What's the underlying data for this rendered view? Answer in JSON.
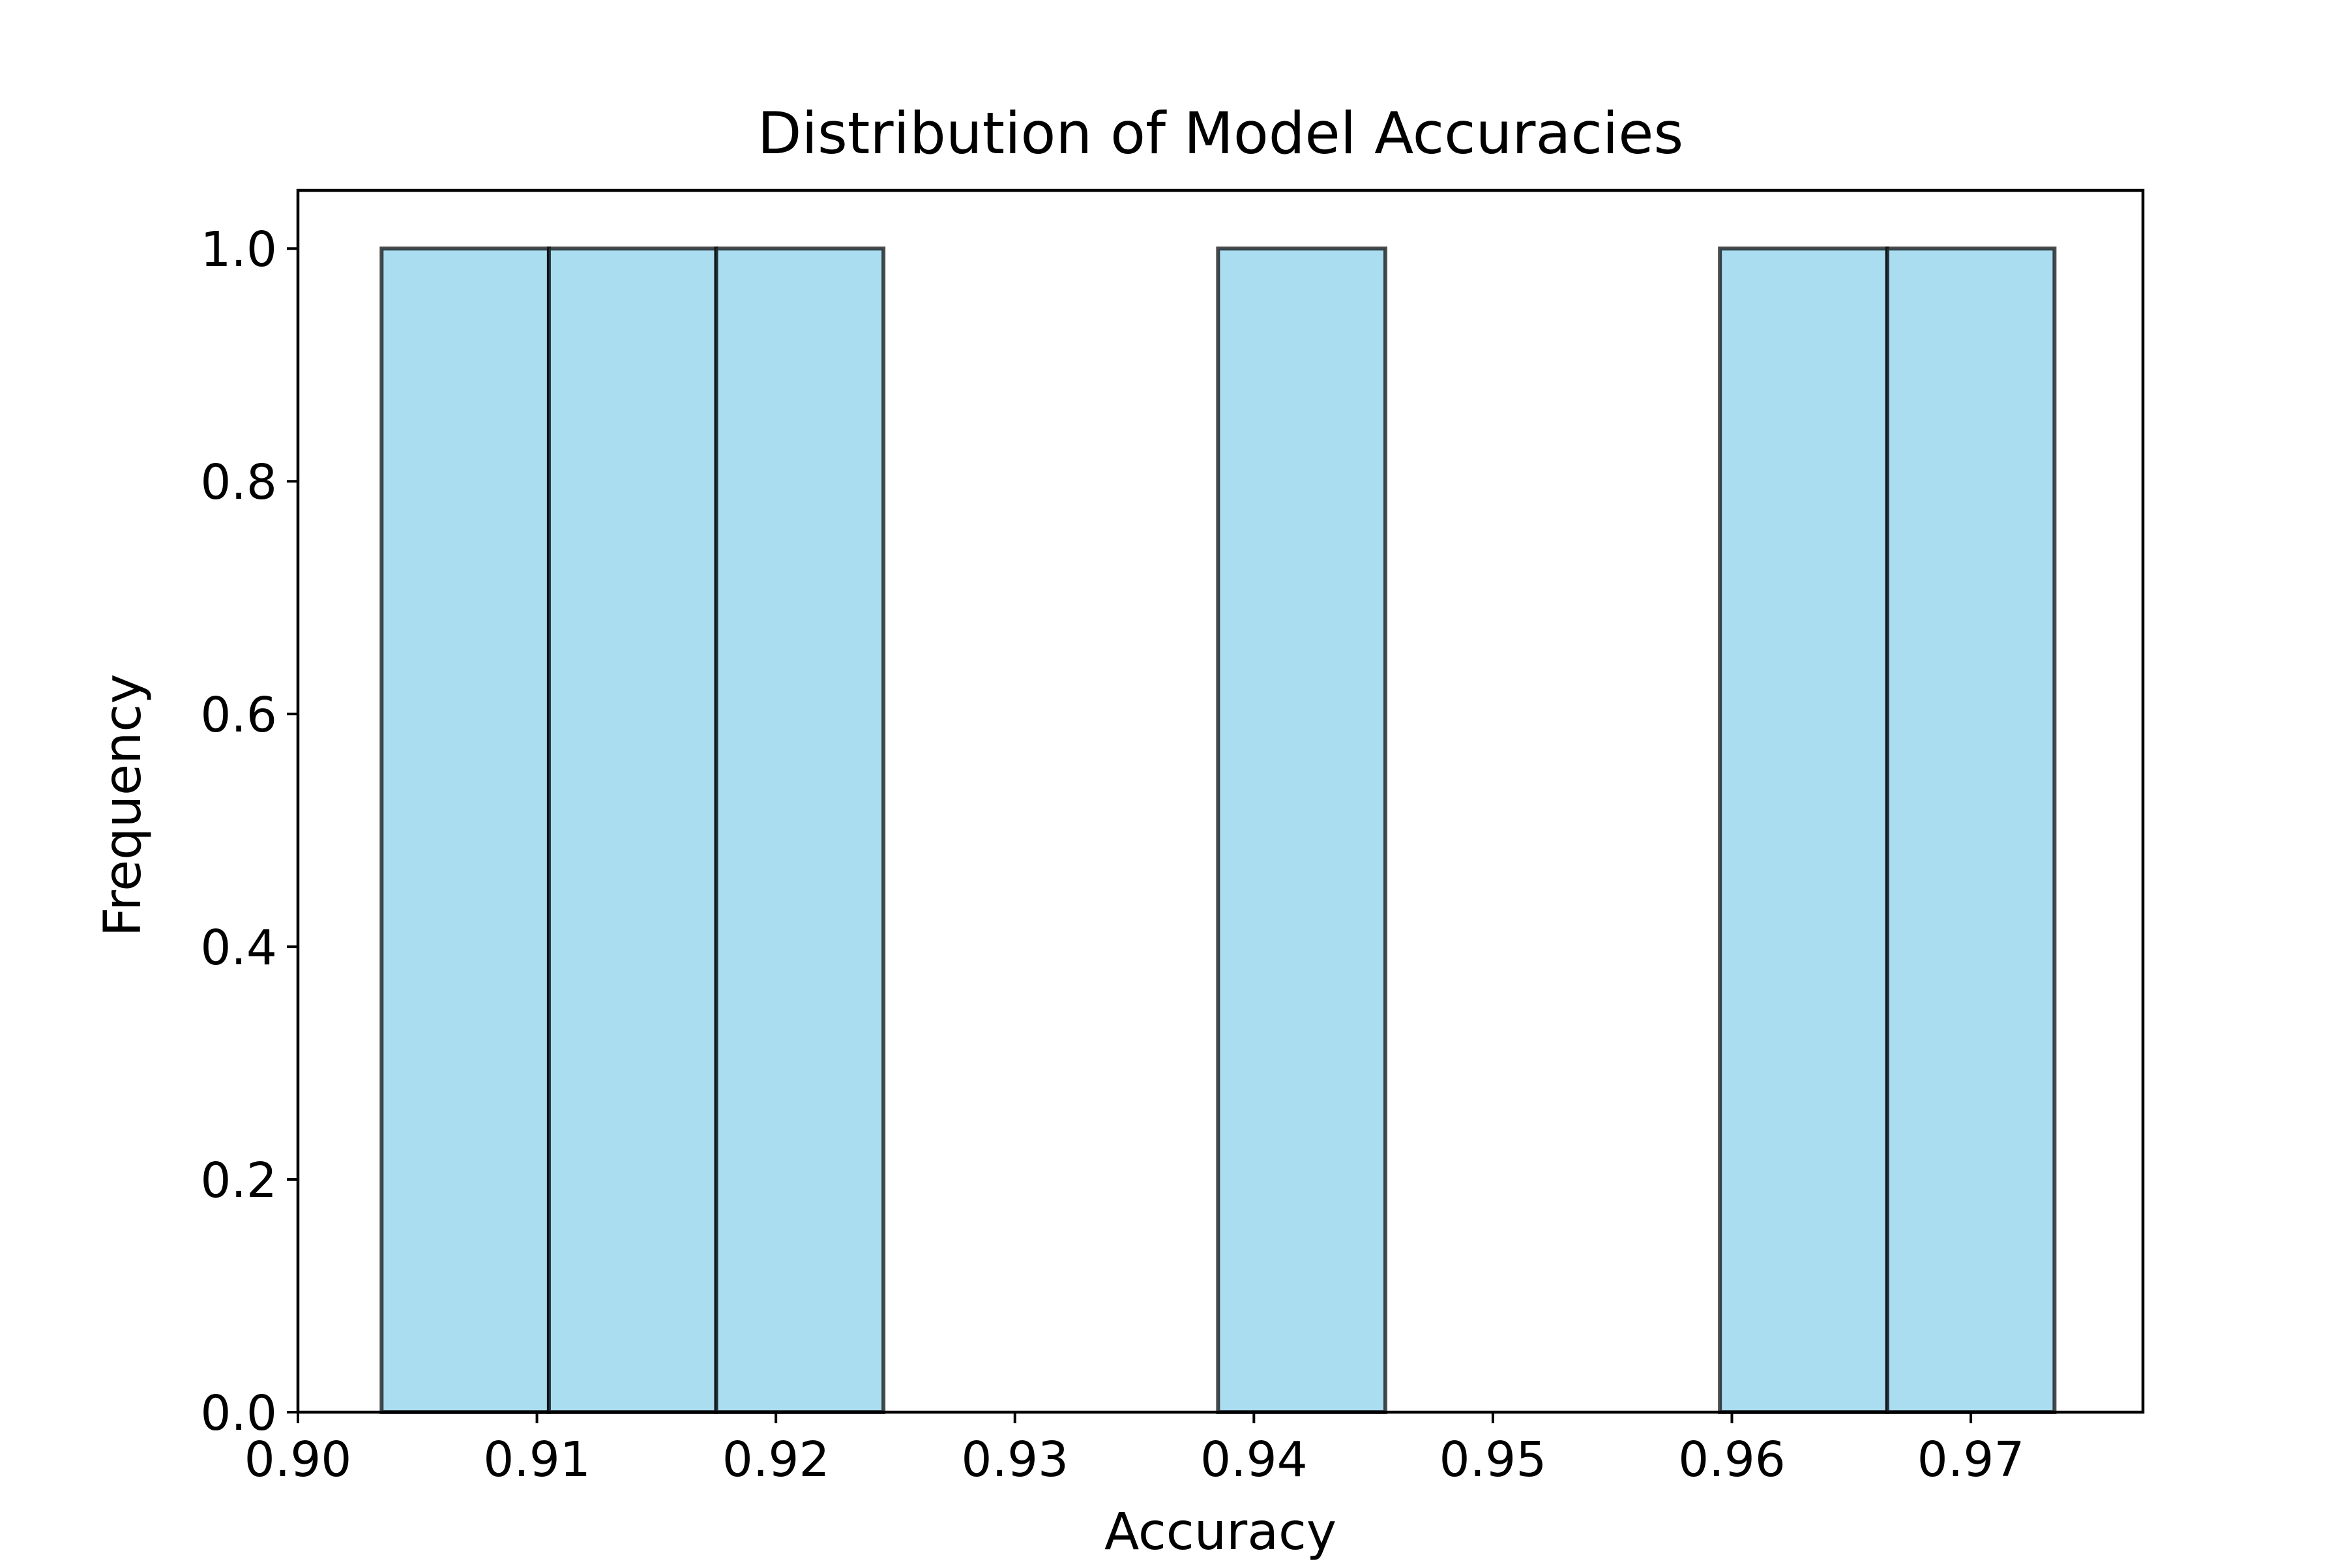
{
  "chart_data": {
    "type": "bar",
    "title": "Distribution of Model Accuracies",
    "xlabel": "Accuracy",
    "ylabel": "Frequency",
    "xlim": [
      0.9,
      0.9772
    ],
    "ylim": [
      0.0,
      1.05
    ],
    "xticks": [
      0.9,
      0.91,
      0.92,
      0.93,
      0.94,
      0.95,
      0.96,
      0.97
    ],
    "xtick_labels": [
      "0.90",
      "0.91",
      "0.92",
      "0.93",
      "0.94",
      "0.95",
      "0.96",
      "0.97"
    ],
    "yticks": [
      0.0,
      0.2,
      0.4,
      0.6,
      0.8,
      1.0
    ],
    "ytick_labels": [
      "0.0",
      "0.2",
      "0.4",
      "0.6",
      "0.8",
      "1.0"
    ],
    "bins": [
      {
        "x0": 0.9035,
        "x1": 0.9105,
        "count": 1
      },
      {
        "x0": 0.9105,
        "x1": 0.9175,
        "count": 1
      },
      {
        "x0": 0.9175,
        "x1": 0.9245,
        "count": 1
      },
      {
        "x0": 0.9245,
        "x1": 0.9315,
        "count": 0
      },
      {
        "x0": 0.9315,
        "x1": 0.9385,
        "count": 0
      },
      {
        "x0": 0.9385,
        "x1": 0.9455,
        "count": 1
      },
      {
        "x0": 0.9455,
        "x1": 0.9525,
        "count": 0
      },
      {
        "x0": 0.9525,
        "x1": 0.9595,
        "count": 0
      },
      {
        "x0": 0.9595,
        "x1": 0.9665,
        "count": 1
      },
      {
        "x0": 0.9665,
        "x1": 0.9735,
        "count": 1
      }
    ],
    "grid": false,
    "bar_color": "#87ceeb",
    "edge_color": "#000000"
  }
}
